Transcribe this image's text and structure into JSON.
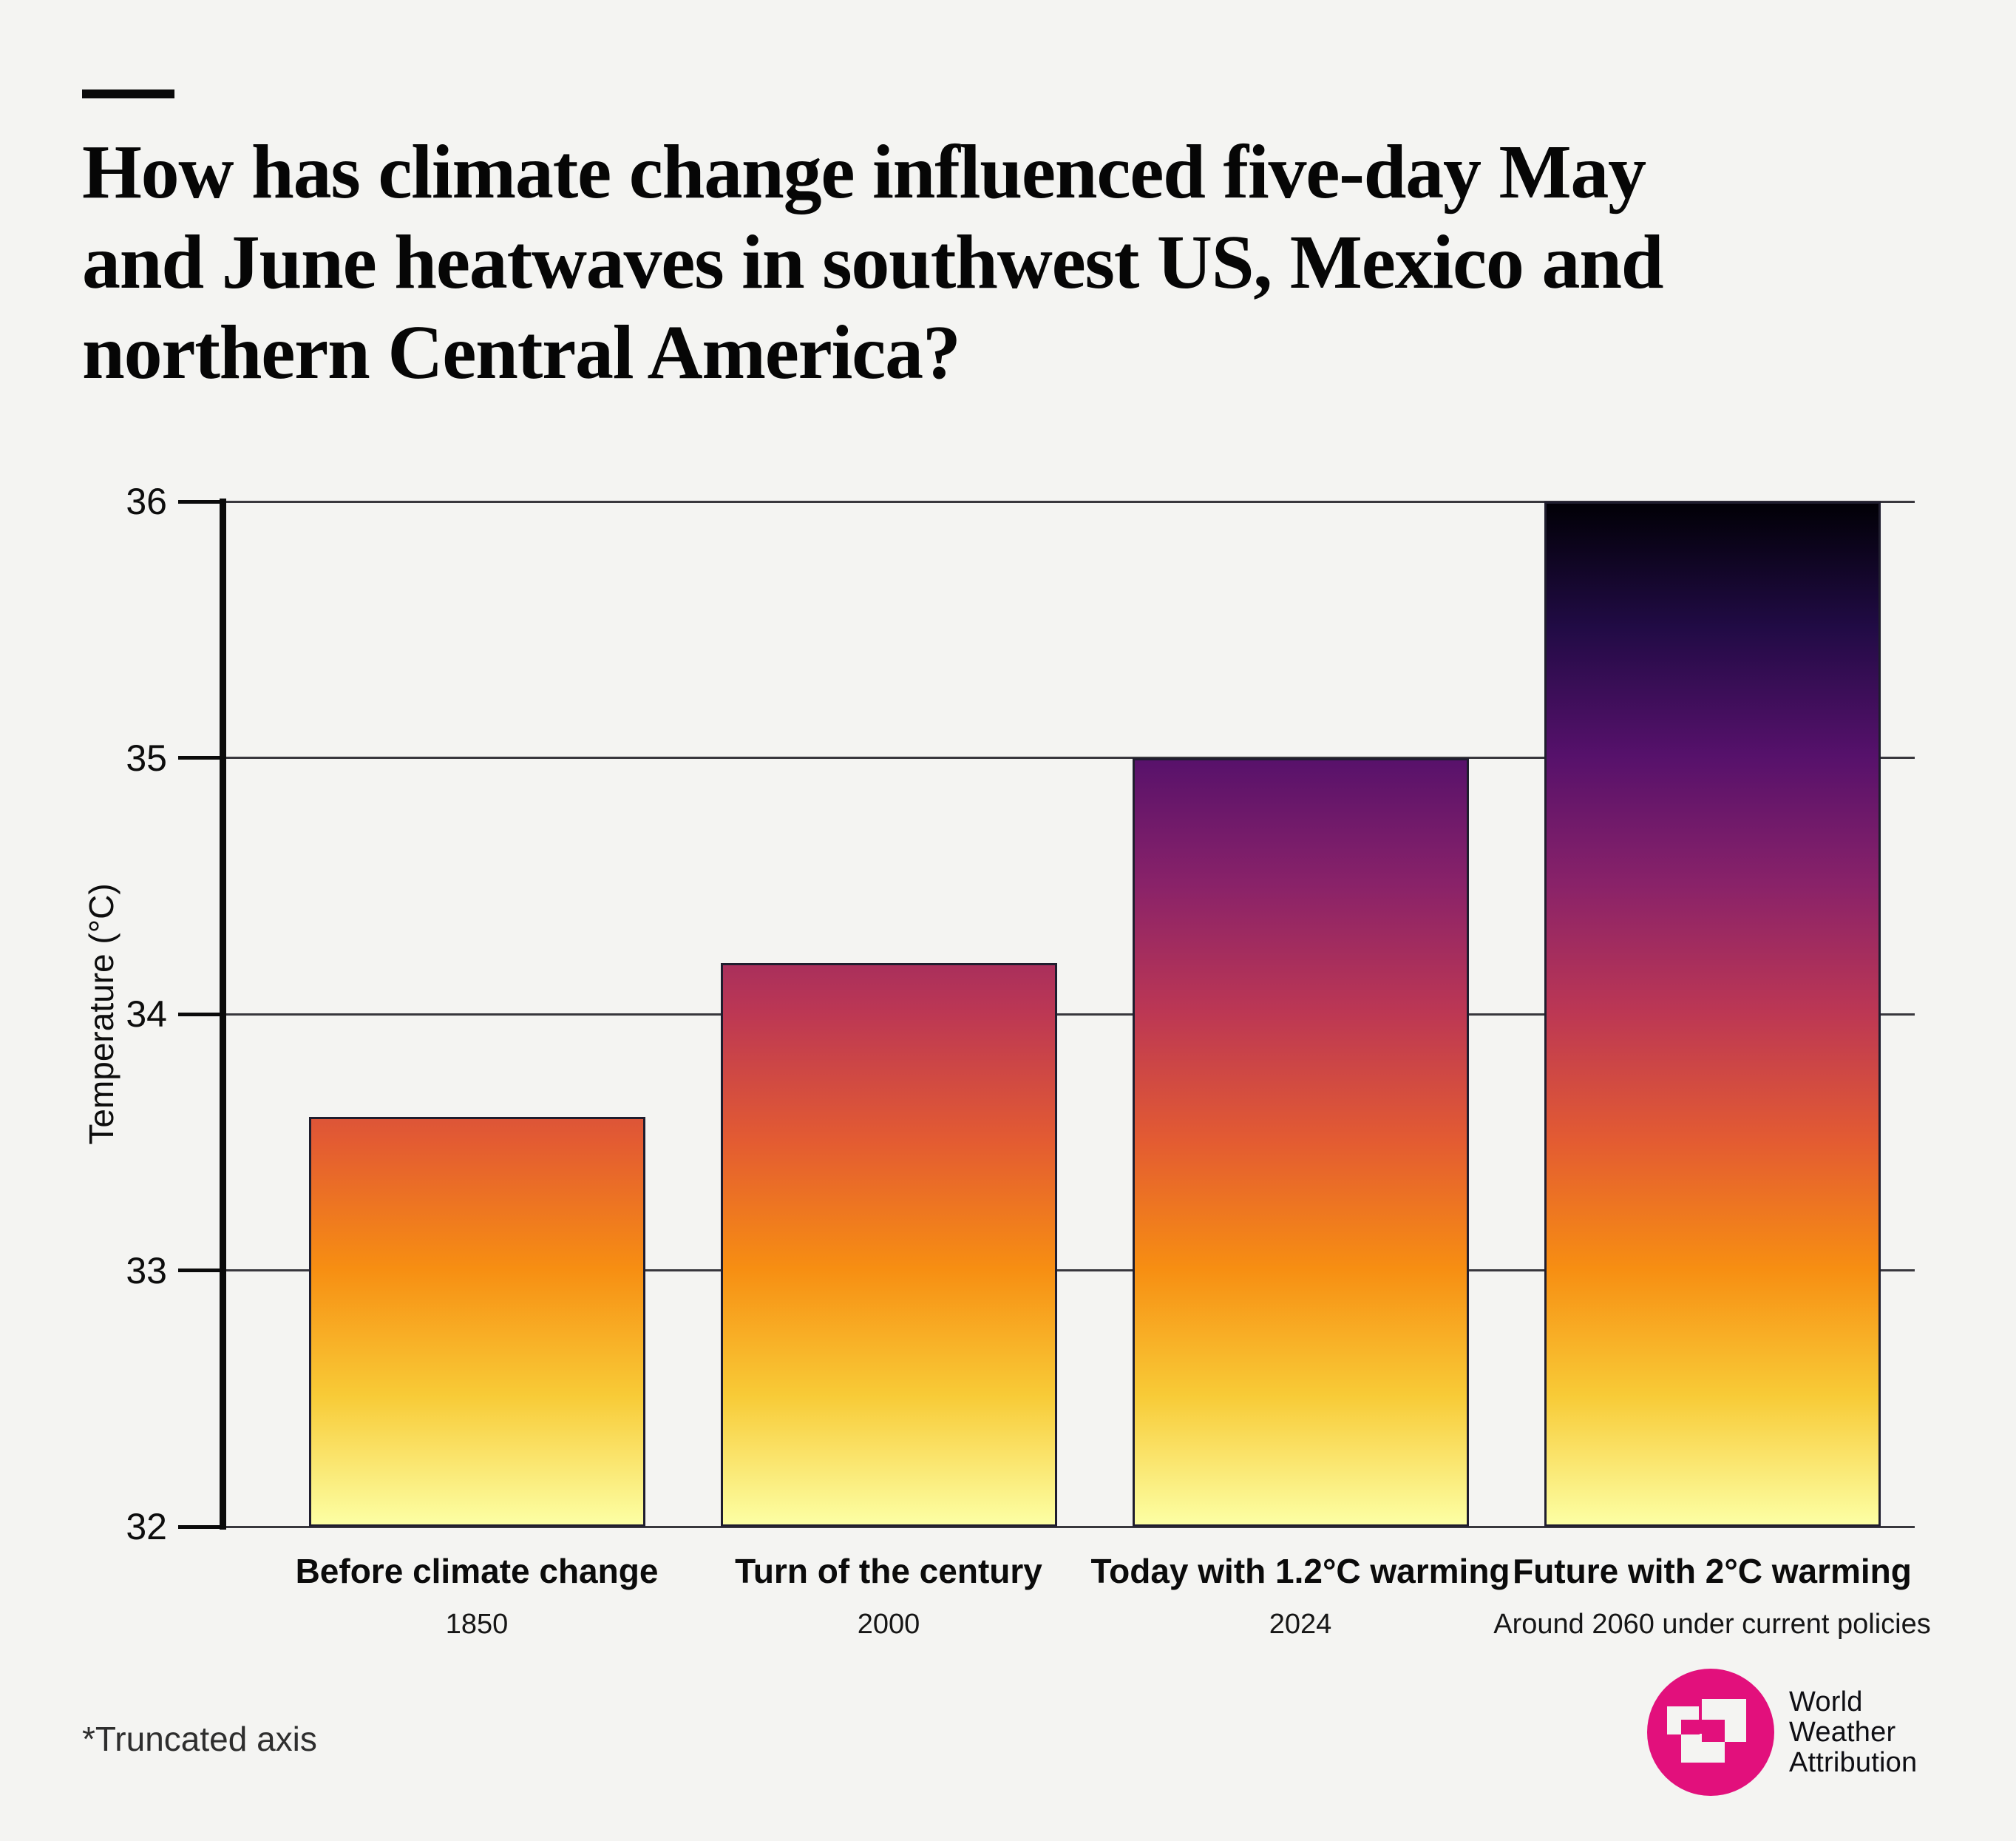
{
  "header": {
    "title": "How has climate change influenced five-day May\nand June heatwaves in southwest US, Mexico and\nnorthern Central America?"
  },
  "chart_data": {
    "type": "bar",
    "title": "How has climate change influenced five-day May and June heatwaves in southwest US, Mexico and northern Central America?",
    "xlabel": "",
    "ylabel": "Temperature (°C)",
    "ylim": [
      32,
      36
    ],
    "yticks": [
      "36",
      "35",
      "34",
      "33",
      "32"
    ],
    "grid": "horizontal",
    "legend": "none",
    "axis_note": "y-axis truncated at 32",
    "categories": [
      "Before climate change",
      "Turn of the century",
      "Today with 1.2°C warming",
      "Future with 2°C warming"
    ],
    "sublabels": [
      "1850",
      "2000",
      "2024",
      "Around 2060 under current policies"
    ],
    "values": [
      33.6,
      34.2,
      35.0,
      36.0
    ],
    "unit": "°C",
    "bar_outline_color": "#1f1d2e",
    "gridline_color": "#38373d",
    "colormap": [
      {
        "temp": 32.0,
        "color": "#fcffa4"
      },
      {
        "temp": 32.5,
        "color": "#f8cb37"
      },
      {
        "temp": 33.0,
        "color": "#f78e12"
      },
      {
        "temp": 33.5,
        "color": "#e35b32"
      },
      {
        "temp": 34.0,
        "color": "#bc3754"
      },
      {
        "temp": 34.5,
        "color": "#892269"
      },
      {
        "temp": 35.0,
        "color": "#56116b"
      },
      {
        "temp": 35.5,
        "color": "#210b45"
      },
      {
        "temp": 36.0,
        "color": "#000004"
      }
    ]
  },
  "footnote": "*Truncated axis",
  "logo": {
    "name": "World Weather Attribution",
    "lines": [
      "World",
      "Weather",
      "Attribution"
    ],
    "brand_color": "#e2107c"
  }
}
